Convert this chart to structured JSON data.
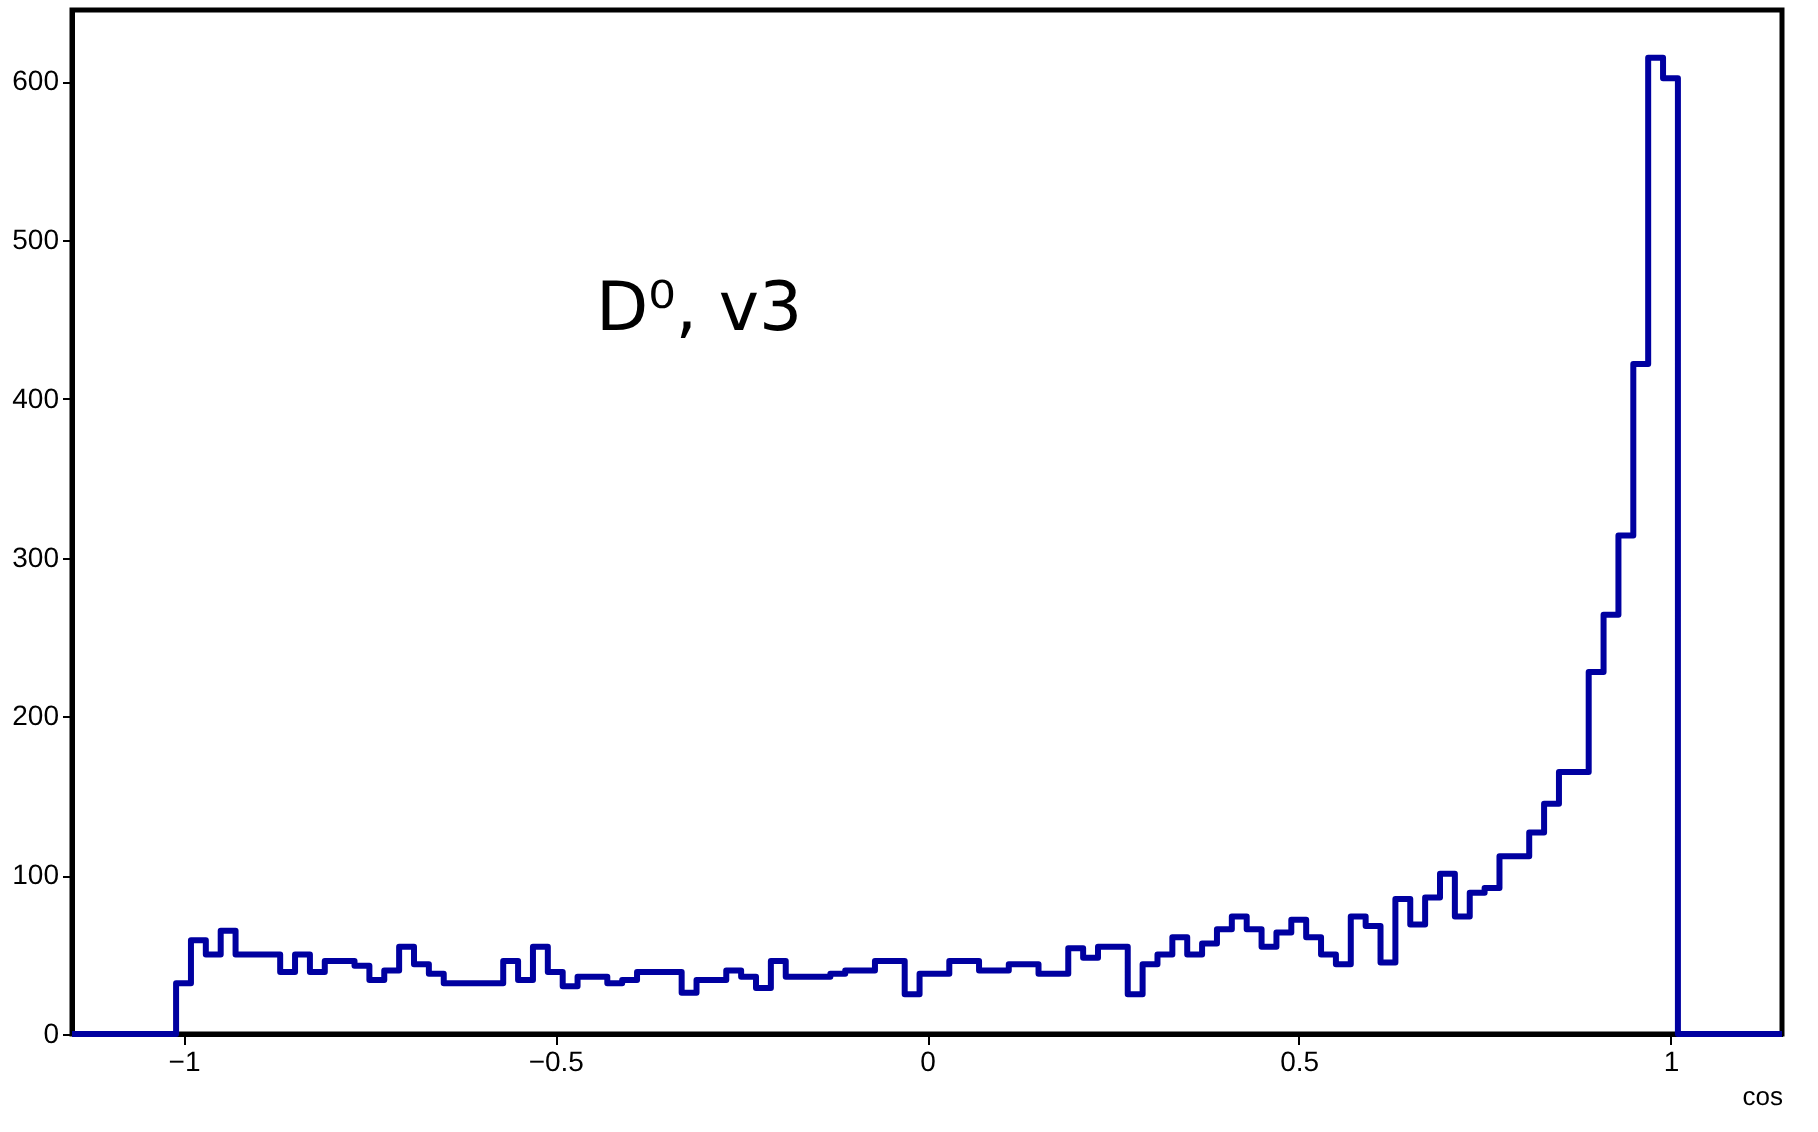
{
  "chart_data": {
    "type": "histogram",
    "bins": [
      -1.15,
      -1.13,
      -1.11,
      -1.09,
      -1.07,
      -1.05,
      -1.03,
      -1.01,
      -0.99,
      -0.97,
      -0.95,
      -0.93,
      -0.91,
      -0.89,
      -0.87,
      -0.85,
      -0.83,
      -0.81,
      -0.79,
      -0.77,
      -0.75,
      -0.73,
      -0.71,
      -0.69,
      -0.67,
      -0.65,
      -0.63,
      -0.61,
      -0.59,
      -0.57,
      -0.55,
      -0.53,
      -0.51,
      -0.49,
      -0.47,
      -0.45,
      -0.43,
      -0.41,
      -0.39,
      -0.37,
      -0.35,
      -0.33,
      -0.31,
      -0.29,
      -0.27,
      -0.25,
      -0.23,
      -0.21,
      -0.19,
      -0.17,
      -0.15,
      -0.13,
      -0.11,
      -0.09,
      -0.07,
      -0.05,
      -0.03,
      -0.01,
      0.01,
      0.03,
      0.05,
      0.07,
      0.09,
      0.11,
      0.13,
      0.15,
      0.17,
      0.19,
      0.21,
      0.23,
      0.25,
      0.27,
      0.29,
      0.31,
      0.33,
      0.35,
      0.37,
      0.39,
      0.41,
      0.43,
      0.45,
      0.47,
      0.49,
      0.51,
      0.53,
      0.55,
      0.57,
      0.59,
      0.61,
      0.63,
      0.65,
      0.67,
      0.69,
      0.71,
      0.73,
      0.75,
      0.77,
      0.79,
      0.81,
      0.83,
      0.85,
      0.87,
      0.89,
      0.91,
      0.93,
      0.95,
      0.97,
      0.99,
      1.01,
      1.03,
      1.05,
      1.07,
      1.09,
      1.11,
      1.13,
      1.15
    ],
    "values": [
      0,
      0,
      0,
      0,
      0,
      0,
      0,
      32,
      59,
      50,
      65,
      50,
      50,
      50,
      39,
      50,
      39,
      46,
      46,
      43,
      34,
      40,
      55,
      44,
      38,
      32,
      32,
      32,
      32,
      46,
      34,
      55,
      39,
      30,
      36,
      36,
      32,
      34,
      39,
      39,
      39,
      26,
      34,
      34,
      40,
      36,
      29,
      46,
      36,
      36,
      36,
      38,
      40,
      40,
      46,
      46,
      25,
      38,
      38,
      46,
      46,
      40,
      40,
      44,
      44,
      38,
      38,
      54,
      48,
      55,
      55,
      25,
      44,
      50,
      61,
      50,
      57,
      66,
      74,
      66,
      55,
      64,
      72,
      61,
      50,
      44,
      74,
      68,
      45,
      85,
      69,
      86,
      101,
      74,
      89,
      92,
      112,
      112,
      127,
      145,
      165,
      165,
      228,
      264,
      314,
      422,
      615,
      602,
      0,
      0,
      0,
      0,
      0,
      0,
      0
    ],
    "color": "#0000a0",
    "xlabel": "cos",
    "annotations": [
      "D⁰, v3"
    ],
    "xlim": [
      -1.15,
      1.15
    ],
    "xticks": [
      {
        "value": -1,
        "label": "−1"
      },
      {
        "value": -0.5,
        "label": "−0.5"
      },
      0,
      0.5,
      1
    ],
    "ylim": [
      0,
      645
    ],
    "yticks": [
      0,
      100,
      200,
      300,
      400,
      500,
      600
    ],
    "grid": false
  }
}
